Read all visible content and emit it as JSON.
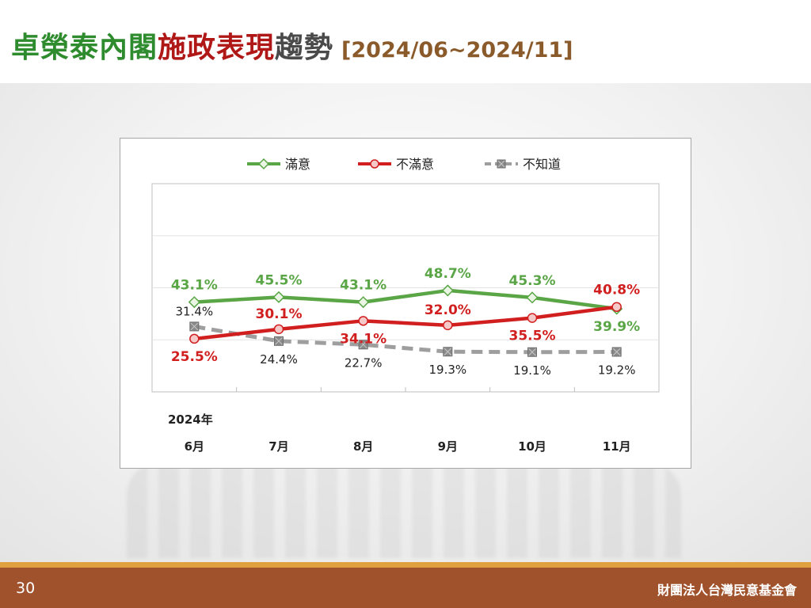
{
  "slide": {
    "title_part1": "卓榮泰內閣",
    "title_part2": "施政表現",
    "title_part3": "趨勢",
    "title_range": "[2024/06~2024/11]",
    "page_number": "30",
    "organization": "財團法人台灣民意基金會"
  },
  "chart_data": {
    "type": "line",
    "year_label": "2024年",
    "categories": [
      "6月",
      "7月",
      "8月",
      "9月",
      "10月",
      "11月"
    ],
    "ylim": [
      0,
      100
    ],
    "legend_position": "top-center",
    "grid": true,
    "series": [
      {
        "name": "滿意",
        "color": "#5aa646",
        "marker": "diamond",
        "dashed": false,
        "values": [
          43.1,
          45.5,
          43.1,
          48.7,
          45.3,
          39.9
        ],
        "labels": [
          "43.1%",
          "45.5%",
          "43.1%",
          "48.7%",
          "45.3%",
          "39.9%"
        ]
      },
      {
        "name": "不滿意",
        "color": "#d11f1f",
        "marker": "circle",
        "dashed": false,
        "values": [
          25.5,
          30.1,
          34.1,
          32.0,
          35.5,
          40.8
        ],
        "labels": [
          "25.5%",
          "30.1%",
          "34.1%",
          "32.0%",
          "35.5%",
          "40.8%"
        ]
      },
      {
        "name": "不知道",
        "color": "#9e9e9e",
        "marker": "square",
        "dashed": true,
        "values": [
          31.4,
          24.4,
          22.7,
          19.3,
          19.1,
          19.2
        ],
        "labels": [
          "31.4%",
          "24.4%",
          "22.7%",
          "19.3%",
          "19.1%",
          "19.2%"
        ]
      }
    ]
  }
}
